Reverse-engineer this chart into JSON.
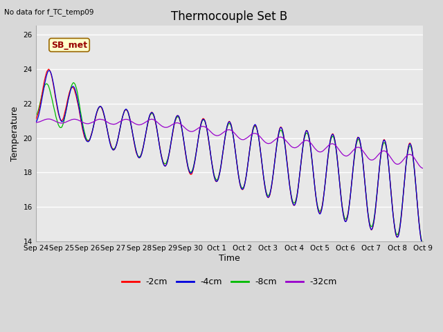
{
  "title": "Thermocouple Set B",
  "no_data_label": "No data for f_TC_temp09",
  "ylabel": "Temperature",
  "xlabel": "Time",
  "ylim": [
    14,
    26.5
  ],
  "yticks": [
    14,
    16,
    18,
    20,
    22,
    24,
    26
  ],
  "fig_bg_color": "#d8d8d8",
  "plot_bg_color": "#e8e8e8",
  "colors": {
    "-2cm": "#ff0000",
    "-4cm": "#0000dd",
    "-8cm": "#00bb00",
    "-32cm": "#9900cc"
  },
  "legend_labels": [
    "-2cm",
    "-4cm",
    "-8cm",
    "-32cm"
  ],
  "annotation_box": {
    "text": "SB_met",
    "facecolor": "#ffffcc",
    "edgecolor": "#996600",
    "textcolor": "#990000"
  },
  "xtick_labels": [
    "Sep 24",
    "Sep 25",
    "Sep 26",
    "Sep 27",
    "Sep 28",
    "Sep 29",
    "Sep 30",
    "Oct 1",
    "Oct 2",
    "Oct 3",
    "Oct 4",
    "Oct 5",
    "Oct 6",
    "Oct 7",
    "Oct 8",
    "Oct 9"
  ],
  "n_points": 1500
}
